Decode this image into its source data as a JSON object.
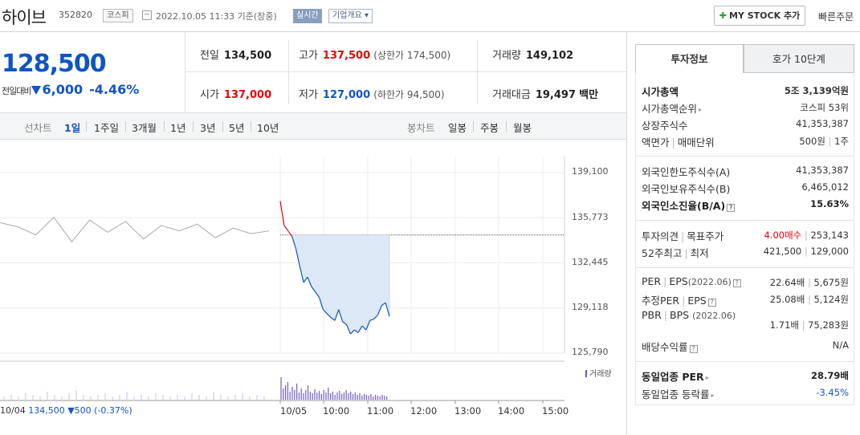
{
  "header": {
    "stock_name": "하이브",
    "stock_code": "352820",
    "market": "코스피",
    "date": "2022.10.05 11:33 기준(장중)",
    "realtime": "실시간",
    "company_info": "기업개요",
    "my_stock": "MY STOCK 추가",
    "quick_order": "빠른주문"
  },
  "summary": {
    "price": "128,500",
    "change_label": "전일대비",
    "change": "6,000",
    "change_pct": "-4.46%",
    "prev_label": "전일",
    "prev": "134,500",
    "high_label": "고가",
    "high": "137,500",
    "upper_limit": "(상한가 174,500)",
    "volume_label": "거래량",
    "volume": "149,102",
    "open_label": "시가",
    "open": "137,000",
    "low_label": "저가",
    "low": "127,000",
    "lower_limit": "(하한가 94,500)",
    "amount_label": "거래대금",
    "amount": "19,497",
    "amount_unit": "백만"
  },
  "toolbar": {
    "line_chart": "선차트",
    "periods": [
      "1일",
      "1주일",
      "3개월",
      "1년",
      "3년",
      "5년",
      "10년"
    ],
    "candle_chart": "봉차트",
    "candles": [
      "일봉",
      "주봉",
      "월봉"
    ]
  },
  "chart_data": {
    "type": "line",
    "y_ticks": [
      "139,100",
      "135,773",
      "132,445",
      "129,118",
      "125,790"
    ],
    "ylim": [
      125790,
      139100
    ],
    "x_labels": [
      "10/05",
      "10:00",
      "11:00",
      "12:00",
      "13:00",
      "14:00",
      "15:00"
    ],
    "prev_close": 134500,
    "previous_day_series": {
      "values": [
        135400,
        135100,
        134500,
        135800,
        134000,
        135600,
        134700,
        135500,
        134200,
        135200,
        134800,
        135300,
        134300,
        135000,
        134600,
        134800
      ]
    },
    "today_series": {
      "values": [
        137000,
        135200,
        134800,
        134400,
        133500,
        132200,
        131000,
        131400,
        130700,
        130300,
        129900,
        129000,
        128700,
        128400,
        128200,
        129000,
        128100,
        127900,
        127200,
        127500,
        127300,
        127800,
        127500,
        128200,
        128300,
        128600,
        129300,
        129500,
        128500
      ]
    },
    "volume_label": "거래량",
    "footer": {
      "date": "10/04",
      "close": "134,500",
      "change": "▼500 (-0.37%)"
    }
  },
  "panel": {
    "tab_active": "투자정보",
    "tab_inactive": "호가 10단계",
    "rows": [
      {
        "k": "시가총액",
        "v": "5조 3,139억원"
      },
      {
        "k": "시가총액순위",
        "v": "코스피 53위"
      },
      {
        "k": "상장주식수",
        "v": "41,353,387"
      },
      {
        "k": "액면가",
        "k2": "매매단위",
        "v": "500원",
        "v2": "1주"
      },
      {
        "k": "외국인한도주식수(A)",
        "v": "41,353,387"
      },
      {
        "k": "외국인보유주식수(B)",
        "v": "6,465,012"
      },
      {
        "k": "외국인소진율(B/A)",
        "v": "15.63%"
      },
      {
        "k": "투자의견",
        "k2": "목표주가",
        "v": "4.00매수",
        "v2": "253,143"
      },
      {
        "k": "52주최고",
        "k2": "최저",
        "v": "421,500",
        "v2": "129,000"
      },
      {
        "k": "PER",
        "k2": "EPS",
        "k3": "(2022.06)",
        "v": "22.64배",
        "v2": "5,675원"
      },
      {
        "k": "추정PER",
        "k2": "EPS",
        "v": "25.08배",
        "v2": "5,124원"
      },
      {
        "k": "PBR",
        "k2": "BPS",
        "k3": "(2022.06)",
        "v": "1.71배",
        "v2": "75,283원"
      },
      {
        "k": "배당수익률",
        "v": "N/A"
      },
      {
        "k": "동일업종 PER",
        "v": "28.79배"
      },
      {
        "k": "동일업종 등락률",
        "v": "-3.45%"
      }
    ]
  },
  "colors": {
    "up": "#e8000b",
    "down": "#1054c5",
    "fill": "#dde8f7",
    "prev_line": "#aaaaaa"
  }
}
